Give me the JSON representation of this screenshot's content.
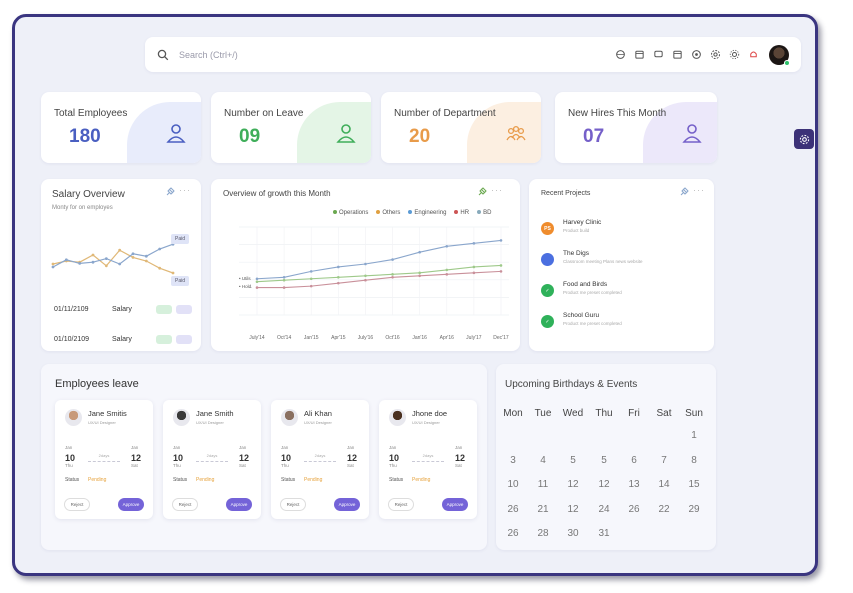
{
  "search": {
    "placeholder": "Search (Ctrl+/)"
  },
  "topbar_icons": [
    "language-icon",
    "calendar-icon",
    "chat-icon",
    "calendar-check-icon",
    "add-circle-icon",
    "gear-icon",
    "sun-icon",
    "bell-icon"
  ],
  "stats": [
    {
      "label": "Total Employees",
      "value": "180",
      "color": "#4a5fc1",
      "blob": "#e8ecfb",
      "icon": "user-icon"
    },
    {
      "label": "Number on Leave",
      "value": "09",
      "color": "#3fae5a",
      "blob": "#e4f5e6",
      "icon": "user-icon"
    },
    {
      "label": "Number of Department",
      "value": "20",
      "color": "#e89b4a",
      "blob": "#fcefe1",
      "icon": "users-group-icon"
    },
    {
      "label": "New Hires This Month",
      "value": "07",
      "color": "#7560c9",
      "blob": "#ece8fa",
      "icon": "user-icon"
    }
  ],
  "salary": {
    "title": "Salary Overview",
    "subtitle": "Monty for on employes",
    "badge1": "Paid",
    "badge2": "Paid",
    "rows": [
      {
        "date": "01/11/2109",
        "label": "Salary"
      },
      {
        "date": "01/10/2109",
        "label": "Salary"
      }
    ]
  },
  "growth": {
    "title": "Overview of growth this Month",
    "legend": [
      "Operations",
      "Others",
      "Engineering",
      "HR",
      "BD"
    ],
    "legend_colors": [
      "#6aa84f",
      "#e0a040",
      "#5b9bd5",
      "#c55",
      "#8ab"
    ],
    "side_labels": [
      "Utils",
      "Hold."
    ]
  },
  "chart_data": {
    "type": "line",
    "categories": [
      "July'14",
      "Oct'14",
      "Jan'15",
      "Apr'15",
      "July'16",
      "Oct'16",
      "Jan'16",
      "Apr'16",
      "July'17",
      "Dec'17"
    ],
    "series": [
      {
        "values": [
          30,
          31,
          35,
          38,
          40,
          43,
          48,
          52,
          54,
          56
        ],
        "color": "#8aa6cc"
      },
      {
        "values": [
          28,
          29,
          30,
          31,
          32,
          33,
          34,
          36,
          38,
          39
        ],
        "color": "#9ec98a"
      },
      {
        "values": [
          24,
          24,
          25,
          27,
          29,
          31,
          32,
          33,
          34,
          35
        ],
        "color": "#c9909a"
      }
    ],
    "ylim": [
      0,
      80
    ]
  },
  "salary_chart": {
    "series": [
      {
        "values": [
          55,
          60,
          58,
          70,
          52,
          78,
          66,
          60,
          48,
          40
        ],
        "color": "#e0b877"
      },
      {
        "values": [
          50,
          62,
          56,
          58,
          64,
          55,
          72,
          68,
          80,
          88
        ],
        "color": "#8aa6cc"
      }
    ]
  },
  "projects": {
    "title": "Recent Projects",
    "items": [
      {
        "name": "Harvey Clinic",
        "sub": "Product build",
        "color": "#ef8c2d",
        "badge": "PS"
      },
      {
        "name": "The Digs",
        "sub": "Classroom meeting Plans news website",
        "color": "#4b6fe0",
        "badge": ""
      },
      {
        "name": "Food and Birds",
        "sub": "Product me preset completed",
        "color": "#2fb15a",
        "badge": "✓"
      },
      {
        "name": "School Guru",
        "sub": "Product me preset completed",
        "color": "#2fb15a",
        "badge": "✓"
      }
    ]
  },
  "leave": {
    "title": "Employees leave",
    "employees": [
      {
        "name": "Jane Smitis",
        "role": "UX/UI Designer",
        "from_month": "Jan",
        "from_day": "10",
        "from_wd": "Thu",
        "to_month": "Jan",
        "to_day": "12",
        "to_wd": "Sat",
        "duration": "2days",
        "status_label": "Status",
        "status": "Pending",
        "reject": "Reject",
        "approve": "Approve",
        "photo": "#c89a7a"
      },
      {
        "name": "Jane Smith",
        "role": "UX/UI Designer",
        "from_month": "Jan",
        "from_day": "10",
        "from_wd": "Thu",
        "to_month": "Jan",
        "to_day": "12",
        "to_wd": "Sat",
        "duration": "2days",
        "status_label": "Status",
        "status": "Pending",
        "reject": "Reject",
        "approve": "Approve",
        "photo": "#3a3a3a"
      },
      {
        "name": "Ali Khan",
        "role": "UX/UI Designer",
        "from_month": "Jan",
        "from_day": "10",
        "from_wd": "Thu",
        "to_month": "Jan",
        "to_day": "12",
        "to_wd": "Sat",
        "duration": "2days",
        "status_label": "Status",
        "status": "Pending",
        "reject": "Reject",
        "approve": "Approve",
        "photo": "#8a7060"
      },
      {
        "name": "Jhone doe",
        "role": "UX/UI Designer",
        "from_month": "Jan",
        "from_day": "10",
        "from_wd": "Thu",
        "to_month": "Jan",
        "to_day": "12",
        "to_wd": "Sat",
        "duration": "2days",
        "status_label": "Status",
        "status": "Pending",
        "reject": "Reject",
        "approve": "Approve",
        "photo": "#4a3020"
      }
    ]
  },
  "calendar": {
    "title": "Upcoming Birthdays & Events",
    "weekdays": [
      "Mon",
      "Tue",
      "Wed",
      "Thu",
      "Fri",
      "Sat",
      "Sun"
    ],
    "weeks": [
      [
        "",
        "",
        "",
        "",
        "",
        "",
        "1"
      ],
      [
        "3",
        "4",
        "5",
        "5",
        "6",
        "7",
        "8"
      ],
      [
        "10",
        "11",
        "12",
        "12",
        "13",
        "14",
        "15"
      ],
      [
        "26",
        "21",
        "12",
        "24",
        "26",
        "22",
        "29"
      ],
      [
        "26",
        "28",
        "30",
        "31",
        "",
        "",
        ""
      ]
    ]
  }
}
